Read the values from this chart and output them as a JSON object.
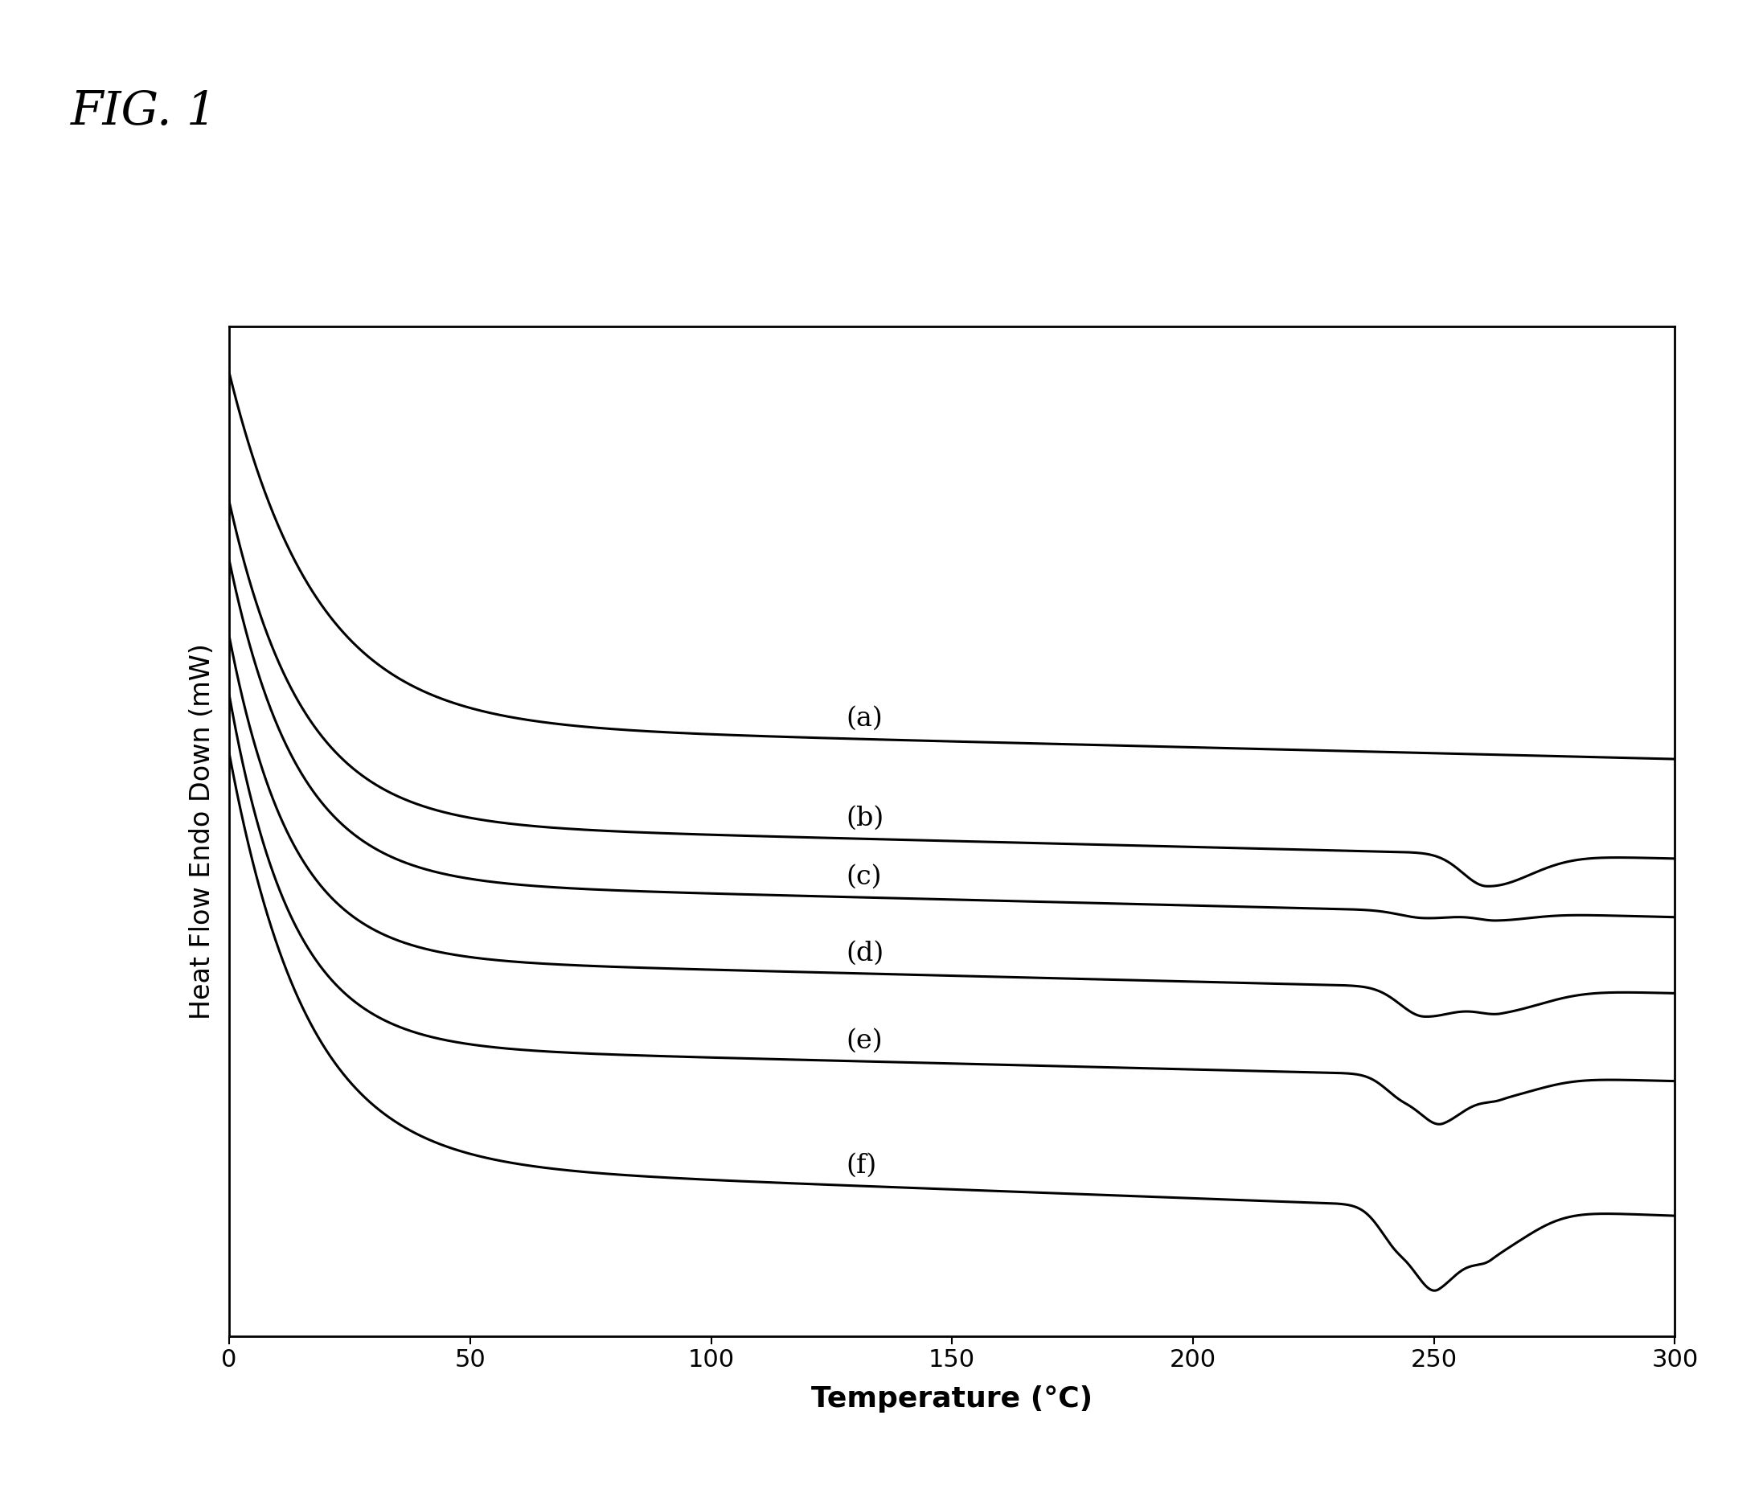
{
  "fig_label": "FIG. 1",
  "xlabel": "Temperature (°C)",
  "ylabel": "Heat Flow Endo Down (mW)",
  "xlim": [
    0,
    300
  ],
  "xticks": [
    0,
    50,
    100,
    150,
    200,
    250,
    300
  ],
  "curve_labels": [
    "(a)",
    "(b)",
    "(c)",
    "(d)",
    "(e)",
    "(f)"
  ],
  "background_color": "#ffffff",
  "line_color": "#000000",
  "line_width": 2.2,
  "fig_label_fontsize": 42,
  "label_fontsize": 24,
  "tick_fontsize": 22,
  "axis_label_fontsize": 26
}
